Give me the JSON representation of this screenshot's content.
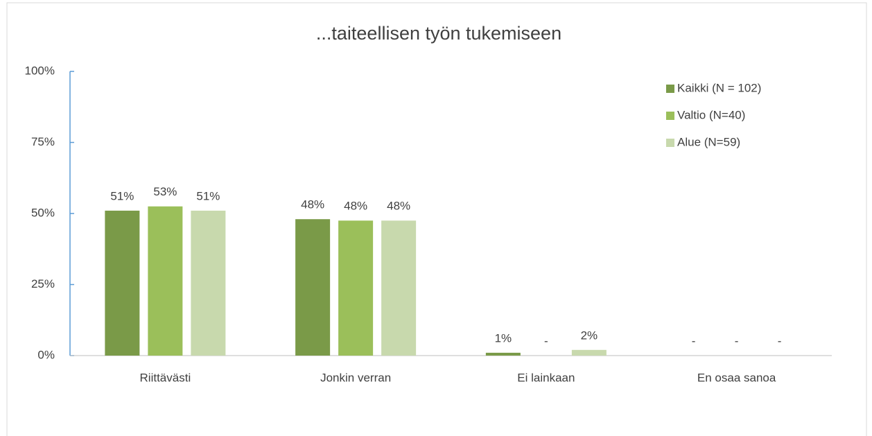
{
  "chart_data": {
    "type": "bar",
    "title": "...taiteellisen työn tukemiseen",
    "categories": [
      "Riittävästi",
      "Jonkin verran",
      "Ei lainkaan",
      "En osaa sanoa"
    ],
    "series": [
      {
        "name": "Kaikki (N = 102)",
        "color": "#7a9a48",
        "values": [
          51,
          48,
          1,
          0
        ],
        "value_labels": [
          "51%",
          "48%",
          "1%",
          "-"
        ]
      },
      {
        "name": "Valtio (N=40)",
        "color": "#9bbf5a",
        "values": [
          52.5,
          47.5,
          0,
          0
        ],
        "value_labels": [
          "53%",
          "48%",
          "-",
          "-"
        ]
      },
      {
        "name": "Alue (N=59)",
        "color": "#c8d9ad",
        "values": [
          51,
          47.5,
          2,
          0
        ],
        "value_labels": [
          "51%",
          "48%",
          "2%",
          "-"
        ]
      }
    ],
    "ylim": [
      0,
      100
    ],
    "yticks": [
      {
        "value": 0,
        "label": "0%"
      },
      {
        "value": 25,
        "label": "25%"
      },
      {
        "value": 50,
        "label": "50%"
      },
      {
        "value": 75,
        "label": "75%"
      },
      {
        "value": 100,
        "label": "100%"
      }
    ],
    "legend": "upper right"
  }
}
